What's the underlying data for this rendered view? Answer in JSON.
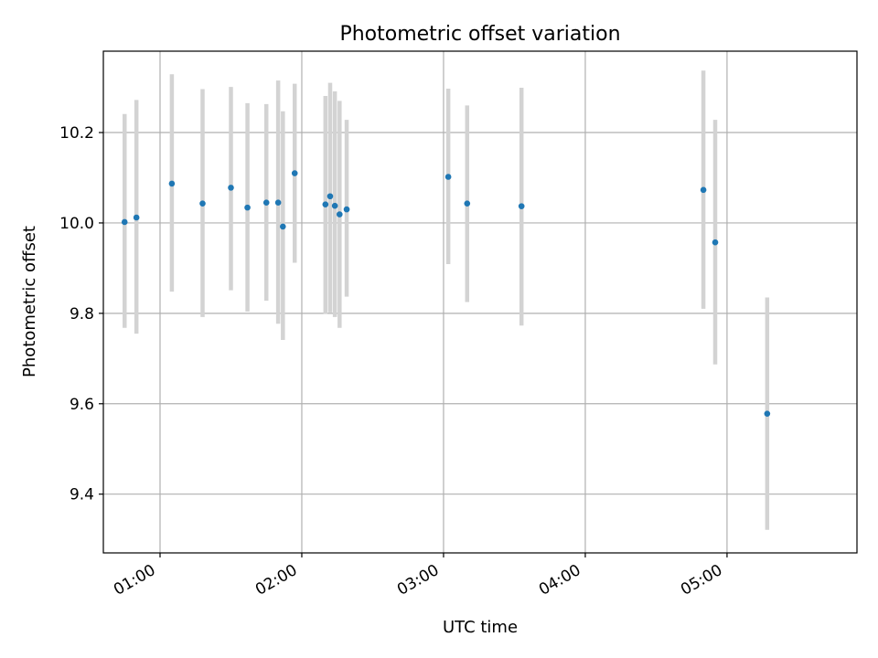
{
  "chart_data": {
    "type": "scatter",
    "title": "Photometric offset variation",
    "xlabel": "UTC time",
    "ylabel": "Photometric offset",
    "x_unit": "hours UTC",
    "xlim": [
      "00:36",
      "05:55"
    ],
    "ylim": [
      9.27,
      10.38
    ],
    "x_ticks": [
      "01:00",
      "02:00",
      "03:00",
      "04:00",
      "05:00"
    ],
    "y_ticks": [
      9.4,
      9.6,
      9.8,
      10.0,
      10.2
    ],
    "y_tick_labels": [
      "9.4",
      "9.6",
      "9.8",
      "10.0",
      "10.2"
    ],
    "grid": true,
    "colors": {
      "points": "#1f77b4",
      "error_bars": "#d3d3d3",
      "grid": "#b0b0b0"
    },
    "points": [
      {
        "time": "00:45",
        "y": 10.002,
        "y_low": 9.768,
        "y_high": 10.241
      },
      {
        "time": "00:50",
        "y": 10.012,
        "y_low": 9.755,
        "y_high": 10.272
      },
      {
        "time": "01:05",
        "y": 10.087,
        "y_low": 9.848,
        "y_high": 10.329
      },
      {
        "time": "01:18",
        "y": 10.043,
        "y_low": 9.792,
        "y_high": 10.296
      },
      {
        "time": "01:30",
        "y": 10.078,
        "y_low": 9.851,
        "y_high": 10.301
      },
      {
        "time": "01:37",
        "y": 10.034,
        "y_low": 9.804,
        "y_high": 10.265
      },
      {
        "time": "01:45",
        "y": 10.045,
        "y_low": 9.828,
        "y_high": 10.263
      },
      {
        "time": "01:50",
        "y": 10.045,
        "y_low": 9.777,
        "y_high": 10.315
      },
      {
        "time": "01:52",
        "y": 9.992,
        "y_low": 9.741,
        "y_high": 10.247
      },
      {
        "time": "01:57",
        "y": 10.11,
        "y_low": 9.912,
        "y_high": 10.308
      },
      {
        "time": "02:10",
        "y": 10.041,
        "y_low": 9.799,
        "y_high": 10.281
      },
      {
        "time": "02:12",
        "y": 10.059,
        "y_low": 9.802,
        "y_high": 10.31
      },
      {
        "time": "02:14",
        "y": 10.038,
        "y_low": 9.792,
        "y_high": 10.291
      },
      {
        "time": "02:16",
        "y": 10.019,
        "y_low": 9.768,
        "y_high": 10.27
      },
      {
        "time": "02:19",
        "y": 10.03,
        "y_low": 9.837,
        "y_high": 10.228
      },
      {
        "time": "03:02",
        "y": 10.102,
        "y_low": 9.909,
        "y_high": 10.297
      },
      {
        "time": "03:10",
        "y": 10.043,
        "y_low": 9.825,
        "y_high": 10.26
      },
      {
        "time": "03:33",
        "y": 10.037,
        "y_low": 9.773,
        "y_high": 10.299
      },
      {
        "time": "04:50",
        "y": 10.073,
        "y_low": 9.81,
        "y_high": 10.337
      },
      {
        "time": "04:55",
        "y": 9.957,
        "y_low": 9.687,
        "y_high": 10.228
      },
      {
        "time": "05:17",
        "y": 9.578,
        "y_low": 9.321,
        "y_high": 9.835
      }
    ]
  }
}
